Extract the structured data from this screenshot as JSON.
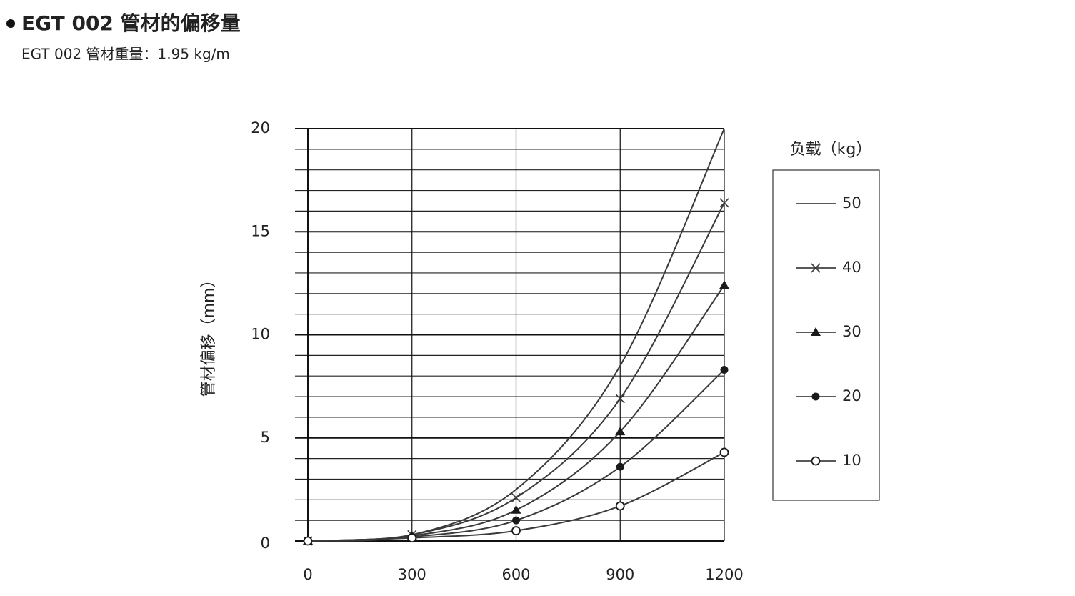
{
  "chart_data": {
    "type": "line",
    "title": "EGT 002 管材的偏移量",
    "subtitle": "EGT 002 管材重量：1.95 kg/m",
    "y_label": "管材偏移（mm）",
    "legend_title": "负载（kg）",
    "x": [
      0,
      300,
      600,
      900,
      1200
    ],
    "xlim": [
      0,
      1200
    ],
    "xticks": [
      0,
      300,
      600,
      900,
      1200
    ],
    "ylim": [
      0,
      20
    ],
    "yticks": [
      0,
      5,
      10,
      15,
      20
    ],
    "y_minor_ticks": [
      1,
      2,
      3,
      4,
      6,
      7,
      8,
      9,
      11,
      12,
      13,
      14,
      16,
      17,
      18,
      19
    ],
    "grid": true,
    "legend": "right",
    "series": [
      {
        "name": "50",
        "color": "#3a3a3a",
        "marker": "none",
        "values": [
          0,
          0.3,
          2.5,
          8.5,
          20
        ]
      },
      {
        "name": "40",
        "color": "#3a3a3a",
        "marker": "x",
        "values": [
          0,
          0.3,
          2.1,
          6.9,
          16.4
        ]
      },
      {
        "name": "30",
        "color": "#3a3a3a",
        "marker": "triangle",
        "values": [
          0,
          0.25,
          1.5,
          5.3,
          12.4
        ]
      },
      {
        "name": "20",
        "color": "#3a3a3a",
        "marker": "circle",
        "values": [
          0,
          0.2,
          1.0,
          3.6,
          8.3
        ]
      },
      {
        "name": "10",
        "color": "#3a3a3a",
        "marker": "open-circle",
        "values": [
          0,
          0.15,
          0.5,
          1.7,
          4.3
        ]
      }
    ]
  }
}
